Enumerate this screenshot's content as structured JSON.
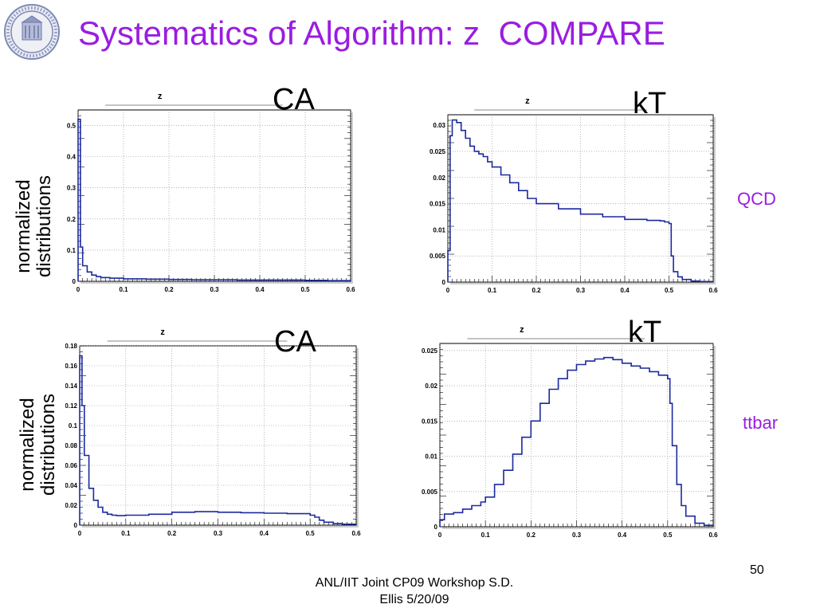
{
  "slide": {
    "title": "Systematics of Algorithm: z  COMPARE",
    "number": "50",
    "footer_line1": "ANL/IIT Joint CP09 Workshop     S.D.",
    "footer_line2": "Ellis 5/20/09",
    "side_label_line1": "normalized",
    "side_label_line2": "distributions",
    "sample_qcd": "QCD",
    "sample_ttbar": "ttbar"
  },
  "colors": {
    "title": "#9a1de0",
    "histogram": "#1c2a9e",
    "grid": "#888888"
  },
  "chart_data": [
    {
      "type": "line",
      "title": "z",
      "algorithm": "CA",
      "sample": "QCD",
      "x": [
        0,
        0.005,
        0.01,
        0.02,
        0.03,
        0.04,
        0.05,
        0.07,
        0.1,
        0.15,
        0.2,
        0.25,
        0.3,
        0.35,
        0.4,
        0.45,
        0.5,
        0.55,
        0.6
      ],
      "values": [
        0.52,
        0.11,
        0.05,
        0.03,
        0.02,
        0.015,
        0.012,
        0.01,
        0.008,
        0.007,
        0.006,
        0.005,
        0.005,
        0.004,
        0.004,
        0.004,
        0.003,
        0.002,
        0.001
      ],
      "xlim": [
        0,
        0.6
      ],
      "ylim": [
        0,
        0.55
      ],
      "xticks": [
        "0",
        "0.1",
        "0.2",
        "0.3",
        "0.4",
        "0.5",
        "0.6"
      ],
      "yticks": [
        "0",
        "0.1",
        "0.2",
        "0.3",
        "0.4",
        "0.5"
      ],
      "ytick_values": [
        0,
        0.1,
        0.2,
        0.3,
        0.4,
        0.5
      ],
      "grid": true
    },
    {
      "type": "line",
      "title": "z",
      "algorithm": "kT",
      "sample": "QCD",
      "x": [
        0,
        0.005,
        0.01,
        0.02,
        0.03,
        0.04,
        0.05,
        0.06,
        0.07,
        0.08,
        0.09,
        0.1,
        0.12,
        0.14,
        0.16,
        0.18,
        0.2,
        0.25,
        0.3,
        0.35,
        0.4,
        0.45,
        0.48,
        0.49,
        0.5,
        0.505,
        0.51,
        0.52,
        0.53,
        0.55,
        0.57,
        0.6
      ],
      "values": [
        0.006,
        0.028,
        0.031,
        0.0305,
        0.029,
        0.0275,
        0.026,
        0.025,
        0.0245,
        0.024,
        0.023,
        0.022,
        0.0205,
        0.019,
        0.0175,
        0.016,
        0.015,
        0.014,
        0.013,
        0.0125,
        0.012,
        0.0118,
        0.0117,
        0.0115,
        0.0112,
        0.005,
        0.002,
        0.001,
        0.0005,
        0.0002,
        0.0001,
        0.0001
      ],
      "xlim": [
        0,
        0.6
      ],
      "ylim": [
        0,
        0.032
      ],
      "xticks": [
        "0",
        "0.1",
        "0.2",
        "0.3",
        "0.4",
        "0.5",
        "0.6"
      ],
      "yticks": [
        "0",
        "0.005",
        "0.01",
        "0.015",
        "0.02",
        "0.025",
        "0.03"
      ],
      "ytick_values": [
        0,
        0.005,
        0.01,
        0.015,
        0.02,
        0.025,
        0.03
      ],
      "grid": true
    },
    {
      "type": "line",
      "title": "z",
      "algorithm": "CA",
      "sample": "ttbar",
      "x": [
        0,
        0.005,
        0.01,
        0.02,
        0.03,
        0.04,
        0.05,
        0.06,
        0.07,
        0.08,
        0.1,
        0.15,
        0.2,
        0.25,
        0.3,
        0.35,
        0.4,
        0.45,
        0.5,
        0.51,
        0.52,
        0.53,
        0.55,
        0.57,
        0.6
      ],
      "values": [
        0.17,
        0.12,
        0.07,
        0.037,
        0.025,
        0.018,
        0.013,
        0.011,
        0.01,
        0.0095,
        0.01,
        0.011,
        0.013,
        0.0135,
        0.013,
        0.0125,
        0.012,
        0.0115,
        0.01,
        0.008,
        0.005,
        0.003,
        0.0015,
        0.001,
        0.0005
      ],
      "xlim": [
        0,
        0.6
      ],
      "ylim": [
        0,
        0.18
      ],
      "xticks": [
        "0",
        "0.1",
        "0.2",
        "0.3",
        "0.4",
        "0.5",
        "0.6"
      ],
      "yticks": [
        "0",
        "0.02",
        "0.04",
        "0.06",
        "0.08",
        "0.1",
        "0.12",
        "0.14",
        "0.16",
        "0.18"
      ],
      "ytick_values": [
        0,
        0.02,
        0.04,
        0.06,
        0.08,
        0.1,
        0.12,
        0.14,
        0.16,
        0.18
      ],
      "grid": true
    },
    {
      "type": "line",
      "title": "z",
      "algorithm": "kT",
      "sample": "ttbar",
      "x": [
        0,
        0.01,
        0.03,
        0.05,
        0.07,
        0.09,
        0.1,
        0.12,
        0.14,
        0.16,
        0.18,
        0.2,
        0.22,
        0.24,
        0.26,
        0.28,
        0.3,
        0.32,
        0.34,
        0.36,
        0.38,
        0.4,
        0.42,
        0.44,
        0.46,
        0.48,
        0.5,
        0.505,
        0.51,
        0.52,
        0.53,
        0.54,
        0.56,
        0.58,
        0.6
      ],
      "values": [
        0.001,
        0.0018,
        0.002,
        0.0025,
        0.003,
        0.0035,
        0.0042,
        0.006,
        0.008,
        0.0103,
        0.0127,
        0.015,
        0.0175,
        0.0195,
        0.021,
        0.0222,
        0.023,
        0.0235,
        0.0238,
        0.024,
        0.0237,
        0.0232,
        0.0228,
        0.0225,
        0.022,
        0.0215,
        0.021,
        0.0175,
        0.0115,
        0.006,
        0.003,
        0.0015,
        0.0005,
        0.0002,
        0.0001
      ],
      "xlim": [
        0,
        0.6
      ],
      "ylim": [
        0,
        0.026
      ],
      "xticks": [
        "0",
        "0.1",
        "0.2",
        "0.3",
        "0.4",
        "0.5",
        "0.6"
      ],
      "yticks": [
        "0",
        "0.005",
        "0.01",
        "0.015",
        "0.02",
        "0.025"
      ],
      "ytick_values": [
        0,
        0.005,
        0.01,
        0.015,
        0.02,
        0.025
      ],
      "grid": true
    }
  ]
}
